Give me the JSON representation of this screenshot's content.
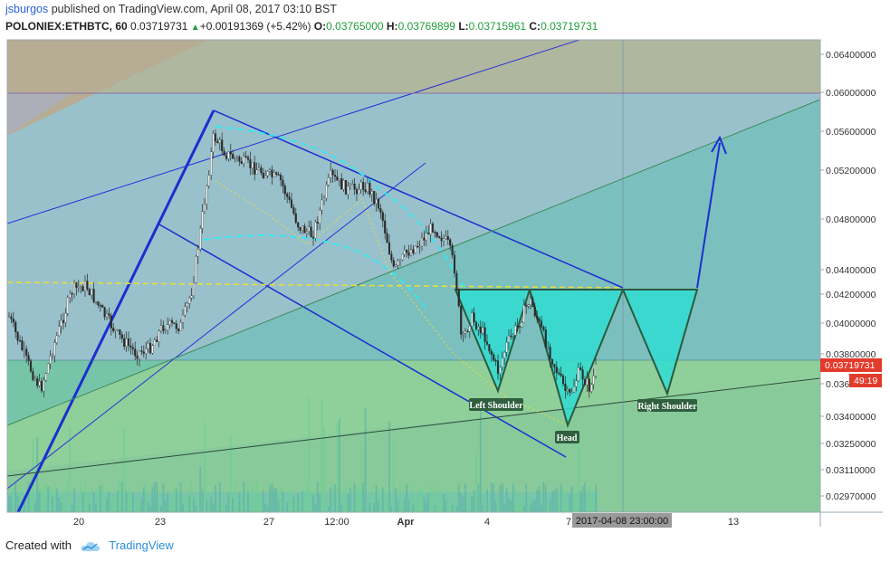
{
  "header": {
    "author": "jsburgos",
    "published_text": "published on TradingView.com, April 08, 2017 03:10 BST",
    "symbol": "POLONIEX:ETHBTC, 60",
    "last": "0.03719731",
    "change_arrow": "▲",
    "change": "+0.00191369 (+5.42%)",
    "open_label": "O:",
    "open": "0.03765000",
    "high_label": "H:",
    "high": "0.03769899",
    "low_label": "L:",
    "low": "0.03715961",
    "close_label": "C:",
    "close": "0.03719731"
  },
  "footer": {
    "created_with": "Created with",
    "brand": "TradingView"
  },
  "chart_data": {
    "type": "candlestick",
    "y_axis_ticks": [
      "0.06400000",
      "0.06000000",
      "0.05600000",
      "0.05200000",
      "0.04800000",
      "0.04400000",
      "0.04200000",
      "0.04000000",
      "0.03800000",
      "0.036",
      "0.03400000",
      "0.03250000",
      "0.03110000",
      "0.02970000"
    ],
    "x_axis_ticks": [
      "20",
      "23",
      "27",
      "12:00",
      "Apr",
      "4",
      "7",
      "13"
    ],
    "price_label": "0.03719731",
    "countdown_label": "49:19",
    "crosshair_time": "2017-04-08 23:00:00",
    "annotations": [
      "Left Shoulder",
      "Head",
      "Right Shoulder"
    ],
    "pattern": "inverse head and shoulders",
    "colors": {
      "up": "#1e9e3a",
      "price_badge": "#e23b2c",
      "line": "#1a2fd1",
      "pattern_fill": "#30dcd2"
    }
  }
}
